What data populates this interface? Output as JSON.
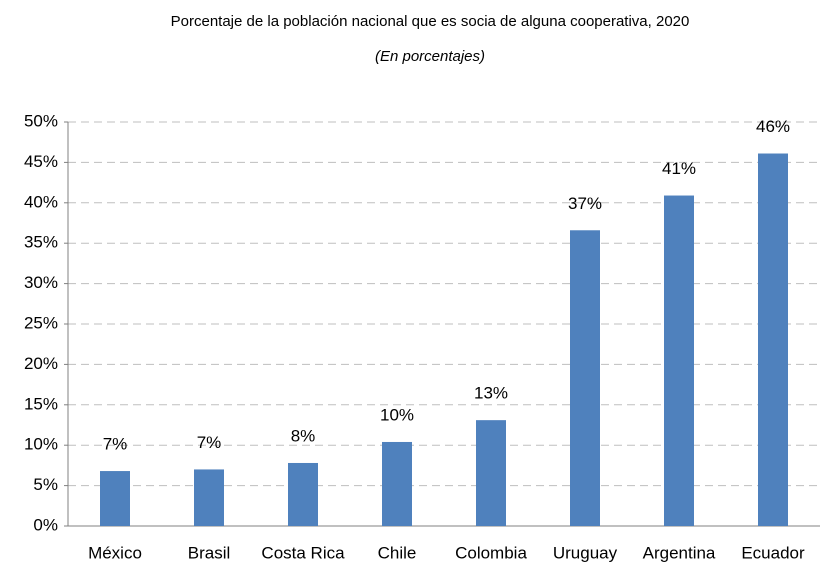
{
  "chart_data": {
    "type": "bar",
    "title": "Porcentaje de la población nacional que es socia de alguna cooperativa, 2020",
    "subtitle": "(En porcentajes)",
    "categories": [
      "México",
      "Brasil",
      "Costa Rica",
      "Chile",
      "Colombia",
      "Uruguay",
      "Argentina",
      "Ecuador"
    ],
    "values": [
      6.8,
      7,
      7.8,
      10.4,
      13.1,
      36.6,
      40.9,
      46.1
    ],
    "value_labels": [
      "7%",
      "7%",
      "8%",
      "10%",
      "13%",
      "37%",
      "41%",
      "46%"
    ],
    "color": "#4f81bd",
    "ylim": [
      0,
      50
    ],
    "yticks": [
      {
        "value": 0,
        "label": "0%"
      },
      {
        "value": 5,
        "label": "5%"
      },
      {
        "value": 10,
        "label": "10%"
      },
      {
        "value": 15,
        "label": "15%"
      },
      {
        "value": 20,
        "label": "20%"
      },
      {
        "value": 25,
        "label": "25%"
      },
      {
        "value": 30,
        "label": "30%"
      },
      {
        "value": 35,
        "label": "35%"
      },
      {
        "value": 40,
        "label": "40%"
      },
      {
        "value": 45,
        "label": "45%"
      },
      {
        "value": 50,
        "label": "50%"
      }
    ],
    "grid": true
  }
}
